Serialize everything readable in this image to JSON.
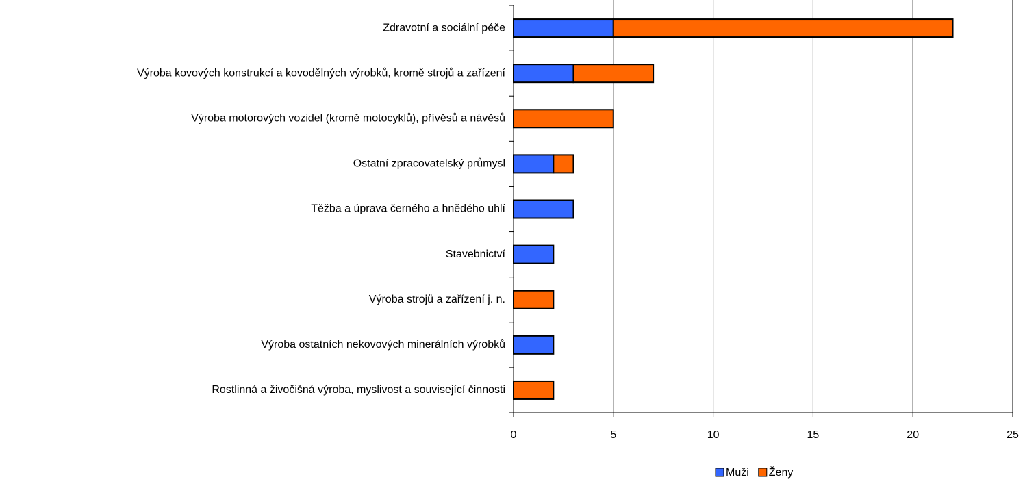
{
  "chart_data": {
    "type": "bar",
    "orientation": "horizontal",
    "stacked": true,
    "categories": [
      "Zdravotní a sociální péče",
      "Výroba kovových konstrukcí a kovodělných výrobků, kromě strojů a zařízení",
      "Výroba motorových vozidel (kromě motocyklů), přívěsů a návěsů",
      "Ostatní zpracovatelský průmysl",
      "Těžba a úprava černého a hnědého uhlí",
      "Stavebnictví",
      "Výroba strojů a zařízení j. n.",
      "Výroba ostatních nekovových minerálních výrobků",
      "Rostlinná a živočišná výroba, myslivost a související činnosti"
    ],
    "series": [
      {
        "name": "Muži",
        "color": "#3366ff",
        "values": [
          5,
          3,
          0,
          2,
          3,
          2,
          0,
          2,
          0
        ]
      },
      {
        "name": "Ženy",
        "color": "#ff6600",
        "values": [
          17,
          4,
          5,
          1,
          0,
          0,
          2,
          0,
          2
        ]
      }
    ],
    "xlim": [
      0,
      25
    ],
    "xticks": [
      0,
      5,
      10,
      15,
      20,
      25
    ],
    "grid": true,
    "legend": "bottom"
  }
}
